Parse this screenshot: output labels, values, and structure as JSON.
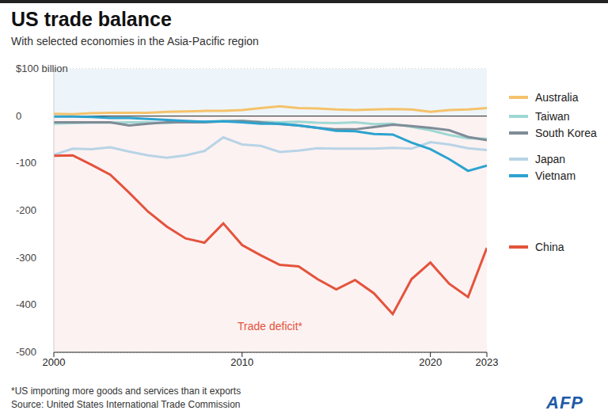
{
  "chart_data": {
    "type": "line",
    "title": "US trade balance",
    "subtitle": "With selected economies in the Asia-Pacific region",
    "annotation": "Trade deficit*",
    "notes": [
      "*US importing more goods and services than it exports",
      "Source: United States International Trade Commission"
    ],
    "credit": "AFP",
    "x": [
      2000,
      2001,
      2002,
      2003,
      2004,
      2005,
      2006,
      2007,
      2008,
      2009,
      2010,
      2011,
      2012,
      2013,
      2014,
      2015,
      2016,
      2017,
      2018,
      2019,
      2020,
      2021,
      2022,
      2023
    ],
    "xlim": [
      2000,
      2023
    ],
    "xticks": [
      2000,
      2010,
      2020,
      2023
    ],
    "ylim": [
      -500,
      100
    ],
    "yticks": [
      -500,
      -400,
      -300,
      -200,
      -100,
      0,
      {
        "value": 100,
        "label": "$100 billion"
      }
    ],
    "grid": true,
    "legend": "right",
    "series": [
      {
        "name": "Australia",
        "color": "#f5c26b",
        "values": [
          5,
          4,
          6,
          7,
          7,
          7,
          9,
          10,
          11,
          11,
          13,
          17,
          21,
          17,
          16,
          14,
          13,
          14,
          15,
          14,
          9,
          13,
          14,
          17
        ]
      },
      {
        "name": "Taiwan",
        "color": "#9fd8d4",
        "values": [
          -16,
          -15,
          -14,
          -14,
          -13,
          -13,
          -15,
          -12,
          -12,
          -10,
          -10,
          -12,
          -13,
          -12,
          -14,
          -15,
          -13,
          -17,
          -16,
          -23,
          -30,
          -40,
          -47,
          -48
        ]
      },
      {
        "name": "South Korea",
        "color": "#7f8c97",
        "values": [
          -13,
          -13,
          -13,
          -13,
          -20,
          -16,
          -13,
          -13,
          -13,
          -11,
          -10,
          -13,
          -17,
          -20,
          -25,
          -28,
          -28,
          -23,
          -18,
          -21,
          -25,
          -30,
          -44,
          -51
        ]
      },
      {
        "name": "Japan",
        "color": "#b8d4e6",
        "values": [
          -82,
          -69,
          -70,
          -66,
          -75,
          -83,
          -88,
          -83,
          -74,
          -45,
          -60,
          -63,
          -76,
          -73,
          -68,
          -69,
          -69,
          -69,
          -67,
          -69,
          -55,
          -60,
          -68,
          -72
        ]
      },
      {
        "name": "Vietnam",
        "color": "#2ca3cf",
        "values": [
          -1,
          -1,
          -2,
          -4,
          -4,
          -6,
          -8,
          -10,
          -12,
          -11,
          -13,
          -16,
          -16,
          -20,
          -25,
          -31,
          -32,
          -38,
          -39,
          -56,
          -70,
          -91,
          -116,
          -105
        ]
      },
      {
        "name": "China",
        "color": "#e4533c",
        "values": [
          -84,
          -83,
          -103,
          -124,
          -162,
          -202,
          -234,
          -259,
          -268,
          -227,
          -273,
          -295,
          -315,
          -318,
          -345,
          -367,
          -347,
          -375,
          -419,
          -345,
          -310,
          -355,
          -383,
          -279
        ]
      }
    ]
  }
}
